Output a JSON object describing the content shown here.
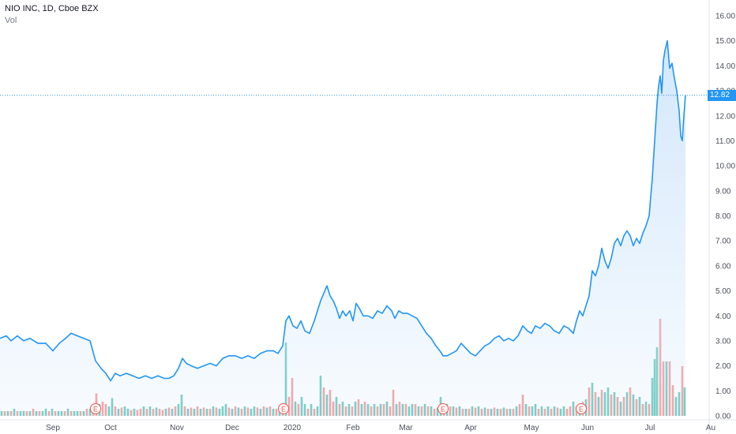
{
  "header": {
    "symbol_line": "NIO INC, 1D, Cboe BZX",
    "volume_label": "Vol"
  },
  "last_price_label": "12.82",
  "colors": {
    "line": "#2196f3",
    "area_top": "#cfe5fb",
    "up_vol": "#4fc1b2",
    "down_vol": "#f28b8b",
    "earnings": "#ef5350",
    "grid": "#e8ebef"
  },
  "earnings_marker_text": "E",
  "chart_data": {
    "type": "area",
    "ylim": [
      0,
      16
    ],
    "y_ticks": [
      "0.00",
      "1.00",
      "2.00",
      "3.00",
      "4.00",
      "5.00",
      "6.00",
      "7.00",
      "8.00",
      "9.00",
      "10.00",
      "11.00",
      "12.00",
      "13.00",
      "14.00",
      "15.00",
      "16.00"
    ],
    "x_ticks": [
      "Sep",
      "Oct",
      "Nov",
      "Dec",
      "2020",
      "Feb",
      "Mar",
      "Apr",
      "May",
      "Jun",
      "Jul",
      "Au"
    ],
    "x_tick_positions": [
      67,
      140,
      224,
      294,
      370,
      447,
      514,
      596,
      673,
      744,
      823,
      900
    ],
    "last_price": 12.82,
    "earnings_positions": [
      121,
      359,
      561,
      736
    ],
    "price_points": [
      [
        0,
        3.1
      ],
      [
        8,
        3.2
      ],
      [
        14,
        3.0
      ],
      [
        22,
        3.2
      ],
      [
        30,
        3.0
      ],
      [
        38,
        3.1
      ],
      [
        48,
        2.9
      ],
      [
        58,
        2.9
      ],
      [
        67,
        2.6
      ],
      [
        75,
        2.9
      ],
      [
        83,
        3.1
      ],
      [
        90,
        3.3
      ],
      [
        98,
        3.2
      ],
      [
        106,
        3.1
      ],
      [
        114,
        3.0
      ],
      [
        121,
        2.2
      ],
      [
        128,
        1.9
      ],
      [
        134,
        1.7
      ],
      [
        140,
        1.4
      ],
      [
        146,
        1.7
      ],
      [
        152,
        1.6
      ],
      [
        160,
        1.7
      ],
      [
        168,
        1.6
      ],
      [
        176,
        1.5
      ],
      [
        184,
        1.6
      ],
      [
        192,
        1.5
      ],
      [
        200,
        1.6
      ],
      [
        208,
        1.5
      ],
      [
        214,
        1.5
      ],
      [
        220,
        1.6
      ],
      [
        226,
        1.9
      ],
      [
        231,
        2.3
      ],
      [
        236,
        2.1
      ],
      [
        242,
        2.0
      ],
      [
        250,
        1.9
      ],
      [
        258,
        2.0
      ],
      [
        266,
        2.1
      ],
      [
        274,
        2.0
      ],
      [
        282,
        2.3
      ],
      [
        290,
        2.4
      ],
      [
        298,
        2.4
      ],
      [
        306,
        2.3
      ],
      [
        314,
        2.4
      ],
      [
        322,
        2.3
      ],
      [
        330,
        2.5
      ],
      [
        338,
        2.6
      ],
      [
        346,
        2.6
      ],
      [
        352,
        2.5
      ],
      [
        358,
        2.8
      ],
      [
        362,
        3.8
      ],
      [
        366,
        4.0
      ],
      [
        371,
        3.6
      ],
      [
        376,
        3.5
      ],
      [
        381,
        3.8
      ],
      [
        386,
        3.4
      ],
      [
        392,
        3.3
      ],
      [
        398,
        3.8
      ],
      [
        402,
        4.2
      ],
      [
        406,
        4.6
      ],
      [
        410,
        4.9
      ],
      [
        414,
        5.2
      ],
      [
        418,
        4.8
      ],
      [
        422,
        4.6
      ],
      [
        426,
        4.3
      ],
      [
        430,
        3.9
      ],
      [
        434,
        4.2
      ],
      [
        438,
        4.0
      ],
      [
        443,
        4.2
      ],
      [
        447,
        3.8
      ],
      [
        451,
        4.5
      ],
      [
        455,
        4.3
      ],
      [
        460,
        4.0
      ],
      [
        466,
        4.0
      ],
      [
        472,
        3.9
      ],
      [
        478,
        4.2
      ],
      [
        484,
        4.1
      ],
      [
        490,
        4.4
      ],
      [
        496,
        4.2
      ],
      [
        500,
        3.9
      ],
      [
        505,
        4.2
      ],
      [
        510,
        4.1
      ],
      [
        516,
        4.1
      ],
      [
        522,
        4.0
      ],
      [
        528,
        3.9
      ],
      [
        534,
        3.6
      ],
      [
        540,
        3.3
      ],
      [
        546,
        3.1
      ],
      [
        552,
        2.8
      ],
      [
        557,
        2.6
      ],
      [
        561,
        2.4
      ],
      [
        566,
        2.4
      ],
      [
        572,
        2.5
      ],
      [
        578,
        2.6
      ],
      [
        584,
        2.9
      ],
      [
        590,
        2.7
      ],
      [
        596,
        2.5
      ],
      [
        602,
        2.4
      ],
      [
        608,
        2.6
      ],
      [
        614,
        2.8
      ],
      [
        620,
        2.9
      ],
      [
        626,
        3.1
      ],
      [
        632,
        3.2
      ],
      [
        638,
        3.0
      ],
      [
        644,
        3.1
      ],
      [
        650,
        3.0
      ],
      [
        656,
        3.2
      ],
      [
        662,
        3.6
      ],
      [
        668,
        3.4
      ],
      [
        673,
        3.3
      ],
      [
        678,
        3.6
      ],
      [
        684,
        3.5
      ],
      [
        690,
        3.7
      ],
      [
        696,
        3.6
      ],
      [
        702,
        3.4
      ],
      [
        708,
        3.3
      ],
      [
        714,
        3.6
      ],
      [
        720,
        3.5
      ],
      [
        726,
        3.3
      ],
      [
        730,
        3.8
      ],
      [
        734,
        4.2
      ],
      [
        738,
        4.0
      ],
      [
        742,
        4.4
      ],
      [
        746,
        4.8
      ],
      [
        750,
        5.8
      ],
      [
        754,
        5.6
      ],
      [
        758,
        6.0
      ],
      [
        762,
        6.7
      ],
      [
        766,
        6.2
      ],
      [
        770,
        5.9
      ],
      [
        774,
        6.3
      ],
      [
        778,
        6.9
      ],
      [
        782,
        7.1
      ],
      [
        786,
        6.8
      ],
      [
        790,
        7.2
      ],
      [
        794,
        7.4
      ],
      [
        798,
        7.2
      ],
      [
        802,
        6.8
      ],
      [
        806,
        7.1
      ],
      [
        810,
        6.9
      ],
      [
        814,
        7.3
      ],
      [
        818,
        7.6
      ],
      [
        822,
        8.0
      ],
      [
        826,
        9.5
      ],
      [
        829,
        11.0
      ],
      [
        832,
        12.5
      ],
      [
        834,
        13.2
      ],
      [
        836,
        13.6
      ],
      [
        838,
        12.9
      ],
      [
        840,
        14.2
      ],
      [
        842,
        14.6
      ],
      [
        845,
        15.0
      ],
      [
        848,
        13.9
      ],
      [
        851,
        14.1
      ],
      [
        854,
        13.5
      ],
      [
        857,
        13.0
      ],
      [
        860,
        12.2
      ],
      [
        862,
        11.2
      ],
      [
        864,
        11.0
      ],
      [
        866,
        12.0
      ],
      [
        868,
        12.82
      ]
    ],
    "volume_bars": [
      [
        2,
        0.2,
        1
      ],
      [
        6,
        0.2,
        0
      ],
      [
        10,
        0.2,
        1
      ],
      [
        14,
        0.2,
        0
      ],
      [
        18,
        0.3,
        1
      ],
      [
        22,
        0.2,
        0
      ],
      [
        26,
        0.2,
        1
      ],
      [
        30,
        0.2,
        1
      ],
      [
        34,
        0.2,
        0
      ],
      [
        38,
        0.2,
        1
      ],
      [
        42,
        0.3,
        0
      ],
      [
        46,
        0.2,
        1
      ],
      [
        50,
        0.2,
        0
      ],
      [
        54,
        0.2,
        1
      ],
      [
        58,
        0.3,
        1
      ],
      [
        62,
        0.2,
        0
      ],
      [
        66,
        0.3,
        1
      ],
      [
        70,
        0.2,
        0
      ],
      [
        74,
        0.2,
        1
      ],
      [
        78,
        0.2,
        1
      ],
      [
        82,
        0.2,
        0
      ],
      [
        86,
        0.3,
        1
      ],
      [
        90,
        0.2,
        0
      ],
      [
        94,
        0.2,
        1
      ],
      [
        98,
        0.2,
        1
      ],
      [
        102,
        0.2,
        0
      ],
      [
        106,
        0.2,
        1
      ],
      [
        110,
        0.3,
        0
      ],
      [
        114,
        0.3,
        1
      ],
      [
        118,
        0.4,
        0
      ],
      [
        122,
        0.95,
        0
      ],
      [
        126,
        0.5,
        1
      ],
      [
        130,
        0.6,
        0
      ],
      [
        134,
        0.5,
        0
      ],
      [
        138,
        0.4,
        1
      ],
      [
        142,
        0.75,
        1
      ],
      [
        146,
        0.4,
        0
      ],
      [
        150,
        0.3,
        1
      ],
      [
        154,
        0.35,
        0
      ],
      [
        158,
        0.4,
        1
      ],
      [
        162,
        0.3,
        1
      ],
      [
        166,
        0.25,
        0
      ],
      [
        170,
        0.3,
        1
      ],
      [
        174,
        0.25,
        0
      ],
      [
        178,
        0.3,
        0
      ],
      [
        182,
        0.4,
        1
      ],
      [
        186,
        0.3,
        0
      ],
      [
        190,
        0.4,
        1
      ],
      [
        194,
        0.3,
        0
      ],
      [
        198,
        0.35,
        1
      ],
      [
        202,
        0.3,
        0
      ],
      [
        206,
        0.25,
        0
      ],
      [
        210,
        0.3,
        1
      ],
      [
        214,
        0.35,
        0
      ],
      [
        218,
        0.3,
        1
      ],
      [
        222,
        0.4,
        0
      ],
      [
        226,
        0.5,
        1
      ],
      [
        230,
        0.9,
        1
      ],
      [
        234,
        0.4,
        0
      ],
      [
        238,
        0.3,
        1
      ],
      [
        242,
        0.35,
        0
      ],
      [
        246,
        0.3,
        1
      ],
      [
        250,
        0.4,
        0
      ],
      [
        254,
        0.3,
        1
      ],
      [
        258,
        0.35,
        0
      ],
      [
        262,
        0.3,
        1
      ],
      [
        266,
        0.3,
        0
      ],
      [
        270,
        0.4,
        1
      ],
      [
        274,
        0.35,
        0
      ],
      [
        278,
        0.3,
        1
      ],
      [
        282,
        0.4,
        1
      ],
      [
        286,
        0.5,
        1
      ],
      [
        290,
        0.35,
        0
      ],
      [
        294,
        0.3,
        1
      ],
      [
        298,
        0.4,
        0
      ],
      [
        302,
        0.35,
        1
      ],
      [
        306,
        0.3,
        0
      ],
      [
        310,
        0.4,
        1
      ],
      [
        314,
        0.35,
        0
      ],
      [
        318,
        0.3,
        1
      ],
      [
        322,
        0.4,
        1
      ],
      [
        326,
        0.35,
        0
      ],
      [
        330,
        0.3,
        1
      ],
      [
        334,
        0.4,
        0
      ],
      [
        338,
        0.35,
        1
      ],
      [
        342,
        0.4,
        0
      ],
      [
        346,
        0.3,
        1
      ],
      [
        350,
        0.3,
        0
      ],
      [
        354,
        0.35,
        1
      ],
      [
        358,
        0.5,
        0
      ],
      [
        362,
        3.1,
        1
      ],
      [
        366,
        0.8,
        0
      ],
      [
        370,
        1.6,
        0
      ],
      [
        374,
        0.6,
        1
      ],
      [
        378,
        0.5,
        0
      ],
      [
        382,
        0.8,
        1
      ],
      [
        386,
        0.5,
        1
      ],
      [
        390,
        0.3,
        0
      ],
      [
        394,
        0.5,
        1
      ],
      [
        398,
        0.3,
        0
      ],
      [
        402,
        0.4,
        1
      ],
      [
        406,
        1.7,
        1
      ],
      [
        410,
        1.2,
        0
      ],
      [
        414,
        0.9,
        1
      ],
      [
        418,
        1.1,
        0
      ],
      [
        422,
        0.6,
        0
      ],
      [
        426,
        0.8,
        1
      ],
      [
        430,
        0.5,
        0
      ],
      [
        434,
        0.6,
        1
      ],
      [
        438,
        0.4,
        0
      ],
      [
        442,
        0.5,
        1
      ],
      [
        446,
        0.4,
        0
      ],
      [
        450,
        0.6,
        1
      ],
      [
        454,
        0.7,
        0
      ],
      [
        458,
        0.5,
        1
      ],
      [
        462,
        0.6,
        0
      ],
      [
        466,
        0.5,
        1
      ],
      [
        470,
        0.4,
        0
      ],
      [
        474,
        0.5,
        1
      ],
      [
        478,
        0.4,
        0
      ],
      [
        482,
        0.5,
        1
      ],
      [
        486,
        0.5,
        0
      ],
      [
        490,
        0.6,
        1
      ],
      [
        494,
        0.4,
        0
      ],
      [
        498,
        1.1,
        0
      ],
      [
        502,
        0.5,
        1
      ],
      [
        506,
        0.6,
        0
      ],
      [
        510,
        0.5,
        1
      ],
      [
        514,
        0.5,
        0
      ],
      [
        518,
        0.4,
        1
      ],
      [
        522,
        0.5,
        1
      ],
      [
        526,
        0.5,
        0
      ],
      [
        530,
        0.4,
        1
      ],
      [
        534,
        0.4,
        0
      ],
      [
        538,
        0.5,
        1
      ],
      [
        542,
        0.4,
        0
      ],
      [
        546,
        0.4,
        1
      ],
      [
        550,
        0.3,
        0
      ],
      [
        554,
        0.35,
        1
      ],
      [
        558,
        0.8,
        1
      ],
      [
        562,
        0.4,
        0
      ],
      [
        566,
        0.5,
        1
      ],
      [
        570,
        0.4,
        0
      ],
      [
        574,
        0.4,
        1
      ],
      [
        578,
        0.35,
        0
      ],
      [
        582,
        0.4,
        1
      ],
      [
        586,
        0.3,
        0
      ],
      [
        590,
        0.3,
        1
      ],
      [
        594,
        0.3,
        0
      ],
      [
        598,
        0.4,
        1
      ],
      [
        602,
        0.35,
        0
      ],
      [
        606,
        0.4,
        1
      ],
      [
        610,
        0.3,
        0
      ],
      [
        614,
        0.35,
        1
      ],
      [
        618,
        0.3,
        0
      ],
      [
        622,
        0.3,
        1
      ],
      [
        626,
        0.35,
        0
      ],
      [
        630,
        0.3,
        1
      ],
      [
        634,
        0.3,
        0
      ],
      [
        638,
        0.35,
        1
      ],
      [
        642,
        0.3,
        0
      ],
      [
        646,
        0.3,
        1
      ],
      [
        650,
        0.3,
        0
      ],
      [
        654,
        0.4,
        1
      ],
      [
        658,
        0.5,
        0
      ],
      [
        662,
        0.9,
        0
      ],
      [
        666,
        0.5,
        1
      ],
      [
        670,
        0.4,
        0
      ],
      [
        674,
        0.4,
        1
      ],
      [
        678,
        0.5,
        1
      ],
      [
        682,
        0.3,
        0
      ],
      [
        686,
        0.4,
        1
      ],
      [
        690,
        0.3,
        0
      ],
      [
        694,
        0.4,
        1
      ],
      [
        698,
        0.3,
        0
      ],
      [
        702,
        0.4,
        1
      ],
      [
        706,
        0.35,
        0
      ],
      [
        710,
        0.3,
        1
      ],
      [
        714,
        0.4,
        1
      ],
      [
        718,
        0.3,
        0
      ],
      [
        722,
        0.4,
        0
      ],
      [
        726,
        0.6,
        1
      ],
      [
        730,
        0.4,
        0
      ],
      [
        734,
        0.5,
        1
      ],
      [
        738,
        0.6,
        0
      ],
      [
        742,
        0.7,
        1
      ],
      [
        746,
        1.2,
        0
      ],
      [
        750,
        1.4,
        1
      ],
      [
        754,
        1.0,
        0
      ],
      [
        758,
        0.8,
        1
      ],
      [
        762,
        1.1,
        0
      ],
      [
        766,
        1.0,
        1
      ],
      [
        770,
        1.2,
        1
      ],
      [
        774,
        0.9,
        0
      ],
      [
        778,
        1.0,
        1
      ],
      [
        782,
        0.8,
        0
      ],
      [
        786,
        0.6,
        1
      ],
      [
        790,
        0.8,
        0
      ],
      [
        794,
        1.0,
        1
      ],
      [
        798,
        1.2,
        0
      ],
      [
        802,
        0.9,
        1
      ],
      [
        806,
        0.7,
        0
      ],
      [
        810,
        0.8,
        1
      ],
      [
        814,
        0.5,
        0
      ],
      [
        818,
        0.6,
        1
      ],
      [
        822,
        0.5,
        0
      ],
      [
        826,
        1.6,
        1
      ],
      [
        829,
        2.4,
        1
      ],
      [
        832,
        2.9,
        1
      ],
      [
        836,
        4.1,
        0
      ],
      [
        840,
        2.3,
        0
      ],
      [
        844,
        2.3,
        1
      ],
      [
        848,
        2.3,
        0
      ],
      [
        852,
        1.3,
        0
      ],
      [
        856,
        0.8,
        1
      ],
      [
        860,
        1.0,
        1
      ],
      [
        864,
        2.1,
        0
      ],
      [
        867,
        1.2,
        1
      ]
    ]
  }
}
